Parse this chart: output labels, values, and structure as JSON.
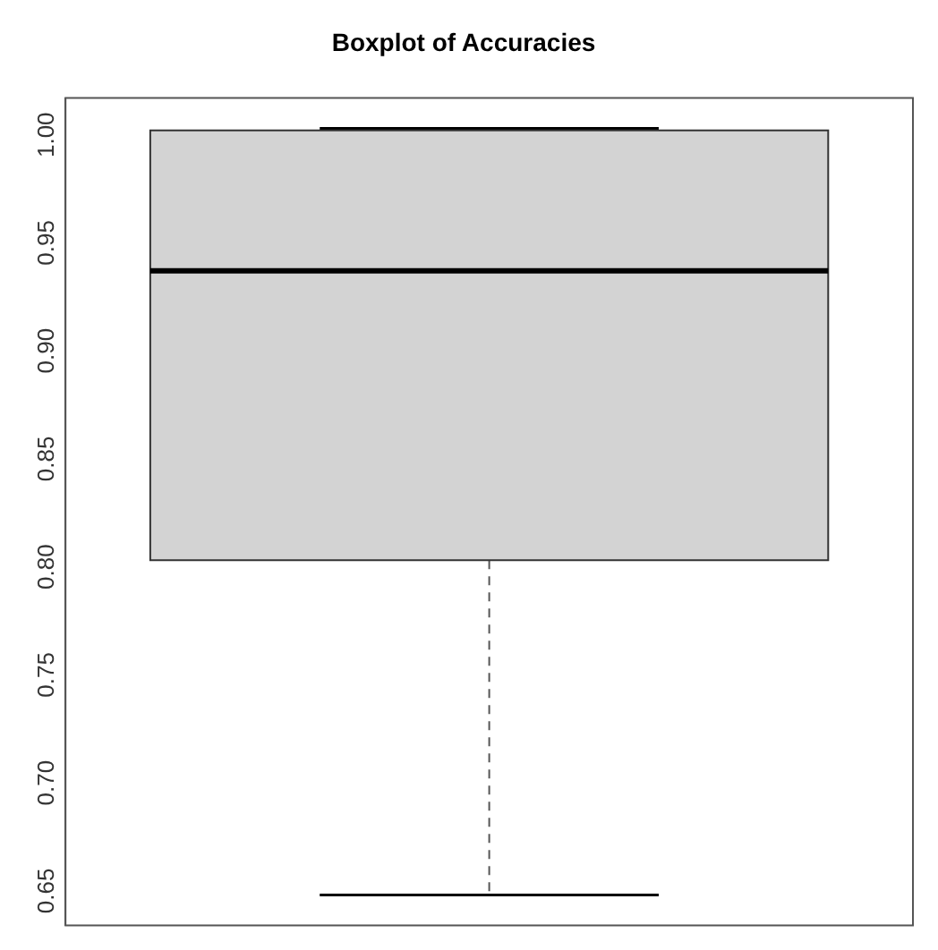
{
  "chart_data": {
    "type": "box",
    "title": "Boxplot of Accuracies",
    "categories": [
      null
    ],
    "boxes": [
      {
        "low": 0.645,
        "q1": 0.8,
        "median": 0.934,
        "q3": 0.999,
        "high": 1.0
      }
    ],
    "color": "#d3d3d3",
    "ylim": [
      0.631,
      1.014
    ],
    "yticks": [
      {
        "value": 0.65,
        "label": "0.65"
      },
      {
        "value": 0.7,
        "label": "0.70"
      },
      {
        "value": 0.75,
        "label": "0.75"
      },
      {
        "value": 0.8,
        "label": "0.80"
      },
      {
        "value": 0.85,
        "label": "0.85"
      },
      {
        "value": 0.9,
        "label": "0.90"
      },
      {
        "value": 0.95,
        "label": "0.95"
      },
      {
        "value": 1.0,
        "label": "1.00"
      }
    ],
    "tick_labels": "y",
    "grid": false,
    "legend": false
  }
}
